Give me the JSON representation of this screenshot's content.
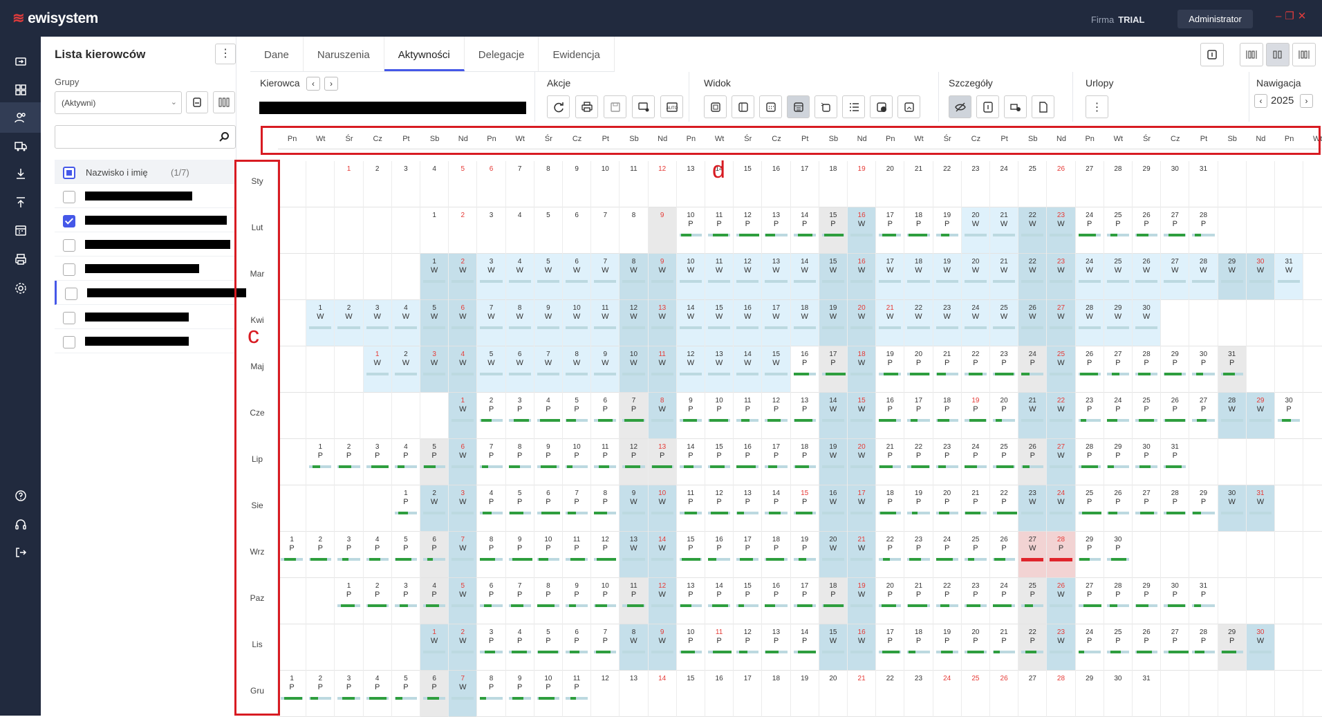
{
  "app": {
    "logo": "ewisystem",
    "firma_label": "Firma",
    "firma_value": "TRIAL",
    "user": "Administrator",
    "window_controls": "–❐✕"
  },
  "nav": [
    "login-icon",
    "dashboard-icon",
    "drivers-icon",
    "vehicles-icon",
    "download-icon",
    "upload-icon",
    "calendar-icon",
    "print-icon",
    "settings-icon",
    "help-icon",
    "headset-icon",
    "logout-icon"
  ],
  "left": {
    "title": "Lista kierowców",
    "groups_label": "Grupy",
    "groups_value": "(Aktywni)",
    "search_placeholder": "",
    "header_name": "Nazwisko i imię",
    "header_count": "(1/7)",
    "drivers": [
      {
        "checked": false,
        "bar": 155
      },
      {
        "checked": true,
        "bar": 205
      },
      {
        "checked": false,
        "bar": 210
      },
      {
        "checked": false,
        "bar": 165
      },
      {
        "checked": false,
        "bar": 230
      },
      {
        "checked": false,
        "bar": 150
      },
      {
        "checked": false,
        "bar": 150
      }
    ]
  },
  "tabs": [
    "Dane",
    "Naruszenia",
    "Aktywności",
    "Delegacje",
    "Ewidencja"
  ],
  "active_tab": 2,
  "toolbar": {
    "kierowca_label": "Kierowca",
    "akcje_label": "Akcje",
    "widok_label": "Widok",
    "szczegoly_label": "Szczegóły",
    "urlopy_label": "Urlopy",
    "nawigacja_label": "Nawigacja",
    "year": "2025"
  },
  "weekdays": [
    "Pn",
    "Wt",
    "Śr",
    "Cz",
    "Pt",
    "Sb",
    "Nd"
  ],
  "months": [
    "Sty",
    "Lut",
    "Mar",
    "Kwi",
    "Maj",
    "Cze",
    "Lip",
    "Sie",
    "Wrz",
    "Paz",
    "Lis",
    "Gru"
  ],
  "year": 2025,
  "holidays": [
    "1-1",
    "1-6",
    "4-21",
    "5-1",
    "5-3",
    "6-8",
    "6-19",
    "8-15",
    "11-1",
    "11-11",
    "12-24",
    "12-25",
    "12-26"
  ],
  "legend": {
    "work": "P",
    "off": "W",
    "sick": "W"
  },
  "annotations": {
    "c": "c",
    "d": "d"
  },
  "colors": {
    "accent": "#4558e8",
    "offday": "#dff1fb",
    "offweekend": "#c5dfea",
    "weekend": "#e9e9e9",
    "activity": "#2e9e3e",
    "rest": "#bcd9e0",
    "alarm": "#e0242b",
    "red_text": "#e53935"
  }
}
